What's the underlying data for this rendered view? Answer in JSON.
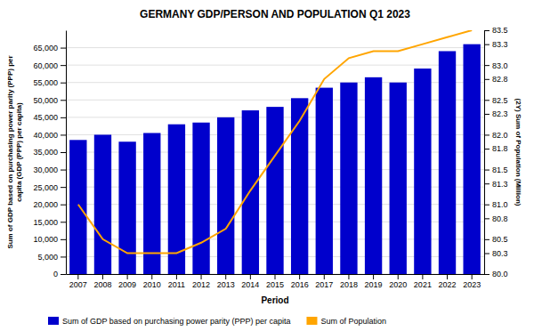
{
  "chart_data": {
    "type": "bar",
    "title": "GERMANY GDP/PERSON AND POPULATION Q1 2023",
    "x_label": "Period",
    "y_label": "Sum of GDP based on purchasing power parity (PPP) per\ncapita (GDP (PPP) per capita)",
    "y2_label": "(2Y) Sum of Population (Million)",
    "categories": [
      "2007",
      "2008",
      "2009",
      "2010",
      "2011",
      "2012",
      "2013",
      "2014",
      "2015",
      "2016",
      "2017",
      "2018",
      "2019",
      "2020",
      "2021",
      "2022",
      "2023"
    ],
    "series": [
      {
        "name": "Sum of GDP based on purchasing power parity (PPP) per capita",
        "type": "bar",
        "color": "#0000cc",
        "values": [
          38500,
          40000,
          38000,
          40500,
          43000,
          43500,
          45000,
          47000,
          48000,
          50500,
          53500,
          55000,
          56500,
          55000,
          59000,
          64000,
          66000
        ]
      },
      {
        "name": "Sum of Population",
        "type": "line",
        "axis": "y2",
        "color": "#FFA500",
        "values": [
          81.0,
          80.5,
          80.3,
          80.3,
          80.3,
          80.45,
          80.65,
          81.2,
          81.7,
          82.2,
          82.8,
          83.1,
          83.2,
          83.2,
          83.3,
          83.4,
          83.5
        ]
      }
    ],
    "ylim": [
      0,
      70000
    ],
    "yticks": [
      0,
      {
        "value": 5000,
        "label": "5,000"
      },
      {
        "value": 10000,
        "label": "10,000"
      },
      {
        "value": 15000,
        "label": "15,000"
      },
      {
        "value": 20000,
        "label": "20,000"
      },
      {
        "value": 25000,
        "label": "25,000"
      },
      {
        "value": 30000,
        "label": "30,000"
      },
      {
        "value": 35000,
        "label": "35,000"
      },
      {
        "value": 40000,
        "label": "40,000"
      },
      {
        "value": 45000,
        "label": "45,000"
      },
      {
        "value": 50000,
        "label": "50,000"
      },
      {
        "value": 55000,
        "label": "55,000"
      },
      {
        "value": 60000,
        "label": "60,000"
      },
      {
        "value": 65000,
        "label": "65,000"
      }
    ],
    "y2lim": [
      80.0,
      83.5
    ],
    "y2ticks": [
      {
        "value": 80.0,
        "label": "80.0"
      },
      80.3,
      80.5,
      80.8,
      {
        "value": 81.0,
        "label": "81.0"
      },
      81.3,
      81.5,
      81.8,
      {
        "value": 82.0,
        "label": "82.0"
      },
      82.3,
      82.5,
      82.8,
      {
        "value": 83.0,
        "label": "83.0"
      },
      83.3,
      83.5
    ],
    "grid": true,
    "legend": "bottom"
  }
}
